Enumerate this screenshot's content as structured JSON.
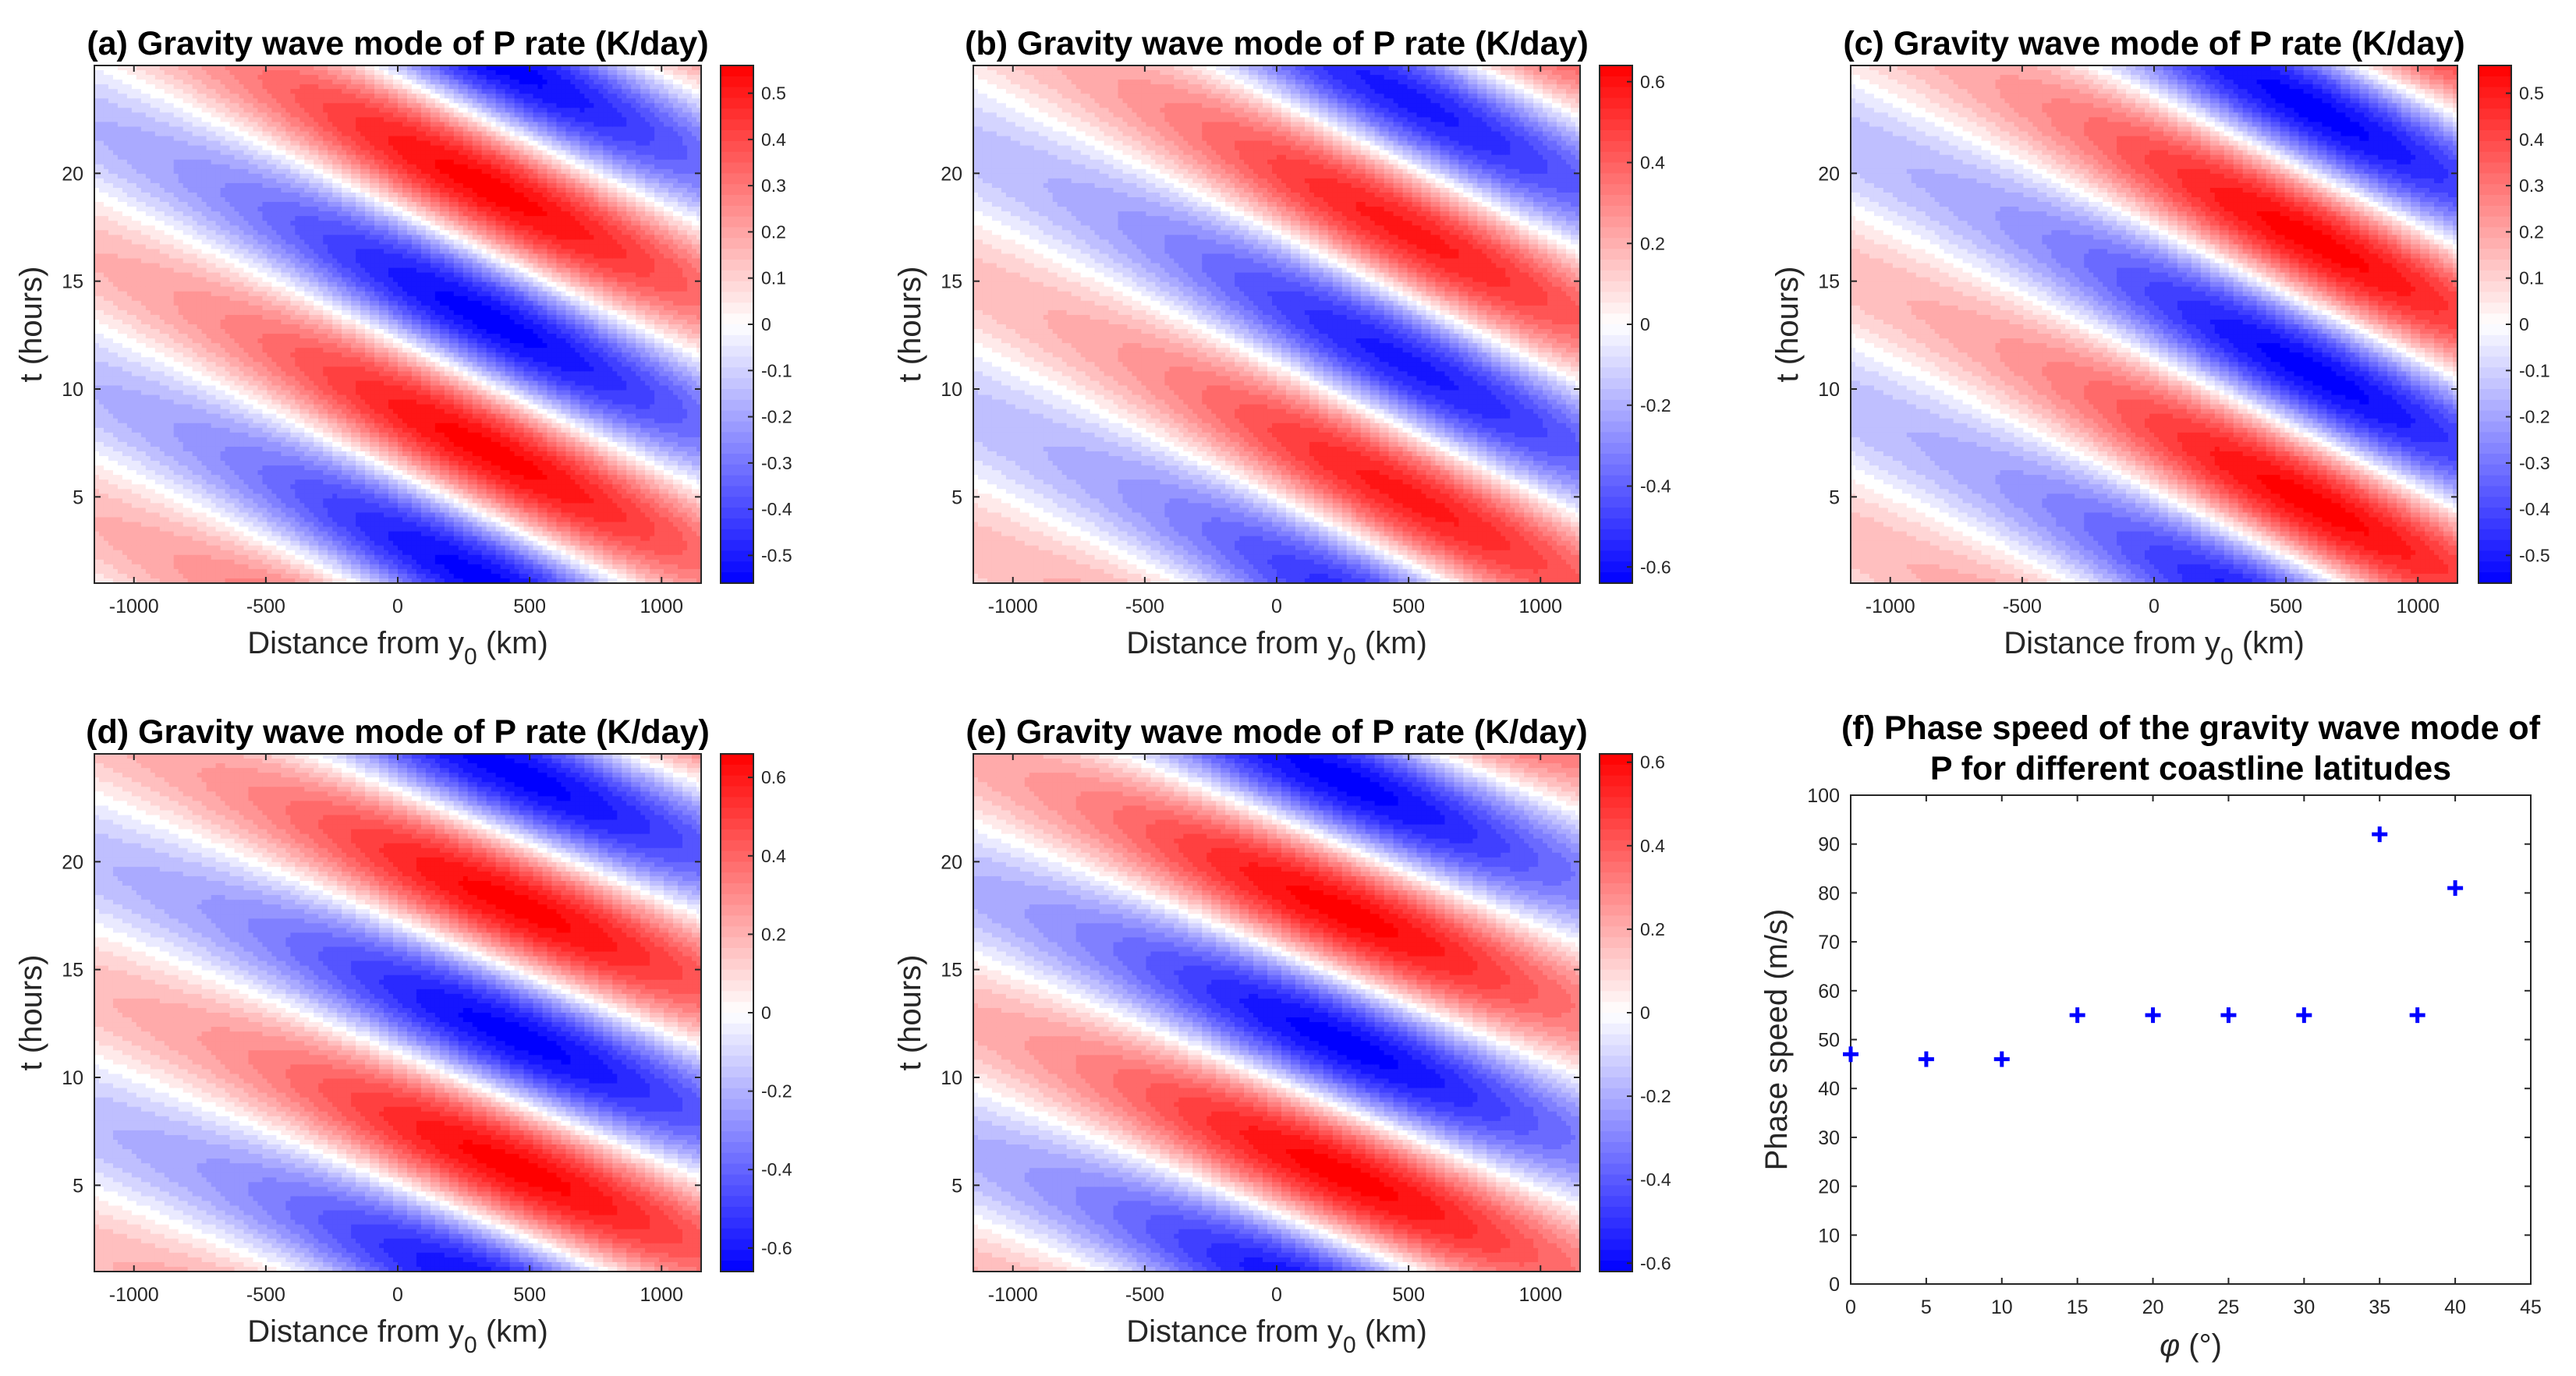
{
  "chart_data": [
    {
      "type": "heatmap",
      "panel": "a",
      "title": "(a) Gravity wave mode of P rate (K/day)",
      "xlabel": "Distance from y",
      "xlabel_sub": "0",
      "xlabel_unit": " (km)",
      "ylabel": "t (hours)",
      "xlim": [
        -1150,
        1150
      ],
      "ylim": [
        1,
        25
      ],
      "xticks": [
        -1000,
        -500,
        0,
        500,
        1000
      ],
      "yticks": [
        5,
        10,
        15,
        20
      ],
      "clim": [
        -0.56,
        0.56
      ],
      "colorbar_ticks": [
        -0.5,
        -0.4,
        -0.3,
        -0.2,
        -0.1,
        0,
        0.1,
        0.2,
        0.3,
        0.4,
        0.5
      ],
      "colormap": [
        "#0000ff",
        "#ffffff",
        "#ff0000"
      ],
      "field": {
        "amplitude_max": 0.56,
        "period_hours": 12.2,
        "phase_speed_ms": 47,
        "crest_y_km": 350,
        "crest_t_hours": [
          7.1,
          19.3
        ]
      }
    },
    {
      "type": "heatmap",
      "panel": "b",
      "title": "(b) Gravity wave mode of P rate (K/day)",
      "xlabel": "Distance from y",
      "xlabel_sub": "0",
      "xlabel_unit": " (km)",
      "ylabel": "t (hours)",
      "xlim": [
        -1150,
        1150
      ],
      "ylim": [
        1,
        25
      ],
      "xticks": [
        -1000,
        -500,
        0,
        500,
        1000
      ],
      "yticks": [
        5,
        10,
        15,
        20
      ],
      "clim": [
        -0.64,
        0.64
      ],
      "colorbar_ticks": [
        -0.6,
        -0.4,
        -0.2,
        0,
        0.2,
        0.4,
        0.6
      ],
      "colormap": [
        "#0000ff",
        "#ffffff",
        "#ff0000"
      ],
      "field": {
        "amplitude_max": 0.58,
        "period_hours": 12.3,
        "phase_speed_ms": 46,
        "crest_y_km": 500,
        "crest_t_hours": [
          5.0,
          17.3
        ]
      }
    },
    {
      "type": "heatmap",
      "panel": "c",
      "title": "(c) Gravity wave mode of P rate (K/day)",
      "xlabel": "Distance from y",
      "xlabel_sub": "0",
      "xlabel_unit": " (km)",
      "ylabel": "t (hours)",
      "xlim": [
        -1150,
        1150
      ],
      "ylim": [
        1,
        25
      ],
      "xticks": [
        -1000,
        -500,
        0,
        500,
        1000
      ],
      "yticks": [
        5,
        10,
        15,
        20
      ],
      "clim": [
        -0.56,
        0.56
      ],
      "colorbar_ticks": [
        -0.5,
        -0.4,
        -0.3,
        -0.2,
        -0.1,
        0,
        0.1,
        0.2,
        0.3,
        0.4,
        0.5
      ],
      "colormap": [
        "#0000ff",
        "#ffffff",
        "#ff0000"
      ],
      "field": {
        "amplitude_max": 0.56,
        "period_hours": 12.2,
        "phase_speed_ms": 46,
        "crest_y_km": 600,
        "crest_t_hours": [
          4.7,
          17.0
        ]
      }
    },
    {
      "type": "heatmap",
      "panel": "d",
      "title": "(d) Gravity wave mode of P rate (K/day)",
      "xlabel": "Distance from y",
      "xlabel_sub": "0",
      "xlabel_unit": " (km)",
      "ylabel": "t (hours)",
      "xlim": [
        -1150,
        1150
      ],
      "ylim": [
        1,
        25
      ],
      "xticks": [
        -1000,
        -500,
        0,
        500,
        1000
      ],
      "yticks": [
        5,
        10,
        15,
        20
      ],
      "clim": [
        -0.66,
        0.66
      ],
      "colorbar_ticks": [
        -0.6,
        -0.4,
        -0.2,
        0,
        0.2,
        0.4,
        0.6
      ],
      "colormap": [
        "#0000ff",
        "#ffffff",
        "#ff0000"
      ],
      "field": {
        "amplitude_max": 0.66,
        "period_hours": 12.2,
        "phase_speed_ms": 55,
        "crest_y_km": 450,
        "crest_t_hours": [
          5.8,
          18.0
        ]
      }
    },
    {
      "type": "heatmap",
      "panel": "e",
      "title": "(e) Gravity wave mode of P rate (K/day)",
      "xlabel": "Distance from y",
      "xlabel_sub": "0",
      "xlabel_unit": " (km)",
      "ylabel": "t (hours)",
      "xlim": [
        -1150,
        1150
      ],
      "ylim": [
        1,
        25
      ],
      "xticks": [
        -1000,
        -500,
        0,
        500,
        1000
      ],
      "yticks": [
        5,
        10,
        15,
        20
      ],
      "clim": [
        -0.62,
        0.62
      ],
      "colorbar_ticks": [
        -0.6,
        -0.4,
        -0.2,
        0,
        0.2,
        0.4,
        0.6
      ],
      "colormap": [
        "#0000ff",
        "#ffffff",
        "#ff0000"
      ],
      "field": {
        "amplitude_max": 0.62,
        "period_hours": 12.2,
        "phase_speed_ms": 55,
        "crest_y_km": 250,
        "crest_t_hours": [
          5.5,
          17.7
        ]
      }
    },
    {
      "type": "scatter",
      "panel": "f",
      "title_lines": [
        "(f) Phase speed of the gravity wave mode of",
        "P for different coastline latitudes"
      ],
      "xlabel_symbol": "φ",
      "xlabel_unit": " (°)",
      "ylabel": "Phase speed (m/s)",
      "xlim": [
        0,
        45
      ],
      "ylim": [
        0,
        100
      ],
      "xticks": [
        0,
        5,
        10,
        15,
        20,
        25,
        30,
        35,
        40,
        45
      ],
      "yticks": [
        0,
        10,
        20,
        30,
        40,
        50,
        60,
        70,
        80,
        90,
        100
      ],
      "marker": "+",
      "marker_color": "#0000ff",
      "x": [
        0,
        5,
        10,
        15,
        20,
        25,
        30,
        35,
        37.5,
        40
      ],
      "y": [
        47,
        46,
        46,
        55,
        55,
        55,
        55,
        92,
        55,
        81
      ]
    }
  ]
}
